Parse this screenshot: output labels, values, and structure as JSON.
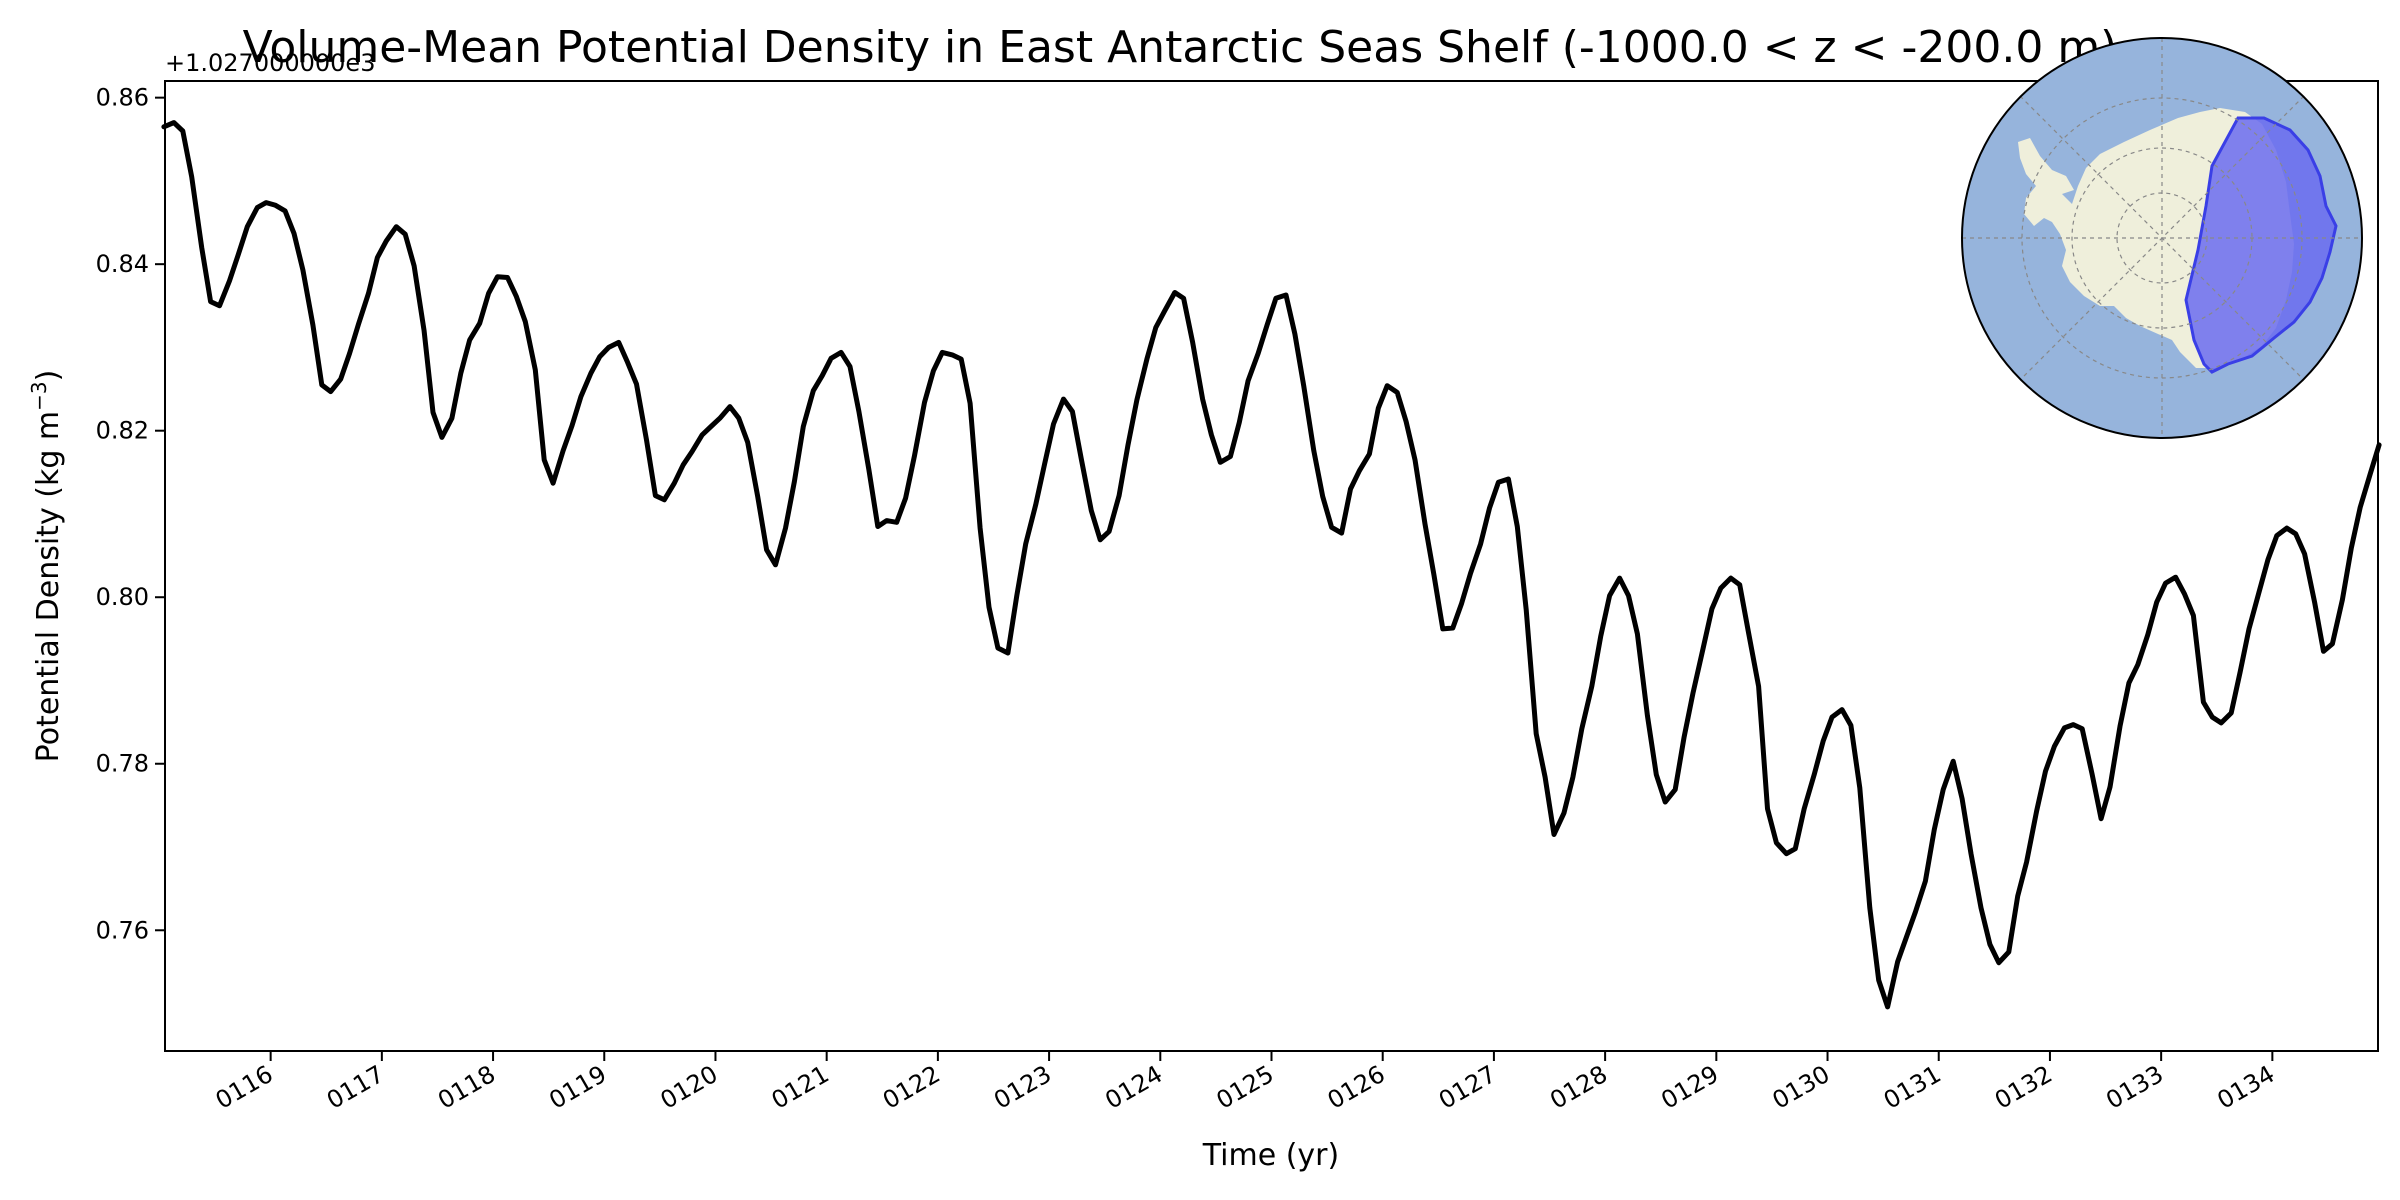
{
  "chart_data": {
    "type": "line",
    "title": "Volume-Mean Potential Density in East Antarctic Seas Shelf (-1000.0 < z < -200.0 m)",
    "xlabel": "Time (yr)",
    "ylabel_main": "Potential Density (kg m",
    "ylabel_sup": "−3",
    "ylabel_close": ")",
    "offset_text": "+1.027000000e3",
    "xlim": [
      115.05,
      134.95
    ],
    "ylim": [
      0.7455,
      0.862
    ],
    "x_ticks": [
      116,
      117,
      118,
      119,
      120,
      121,
      122,
      123,
      124,
      125,
      126,
      127,
      128,
      129,
      130,
      131,
      132,
      133,
      134
    ],
    "x_tick_labels": [
      "0116",
      "0117",
      "0118",
      "0119",
      "0120",
      "0121",
      "0122",
      "0123",
      "0124",
      "0125",
      "0126",
      "0127",
      "0128",
      "0129",
      "0130",
      "0131",
      "0132",
      "0133",
      "0134"
    ],
    "y_ticks": [
      0.76,
      0.78,
      0.8,
      0.82,
      0.84,
      0.86
    ],
    "y_tick_labels": [
      "0.76",
      "0.78",
      "0.80",
      "0.82",
      "0.84",
      "0.86"
    ],
    "series": [
      {
        "name": "East Antarctic Seas Shelf",
        "color": "#000000",
        "x": [
          115.04,
          115.13,
          115.21,
          115.29,
          115.38,
          115.46,
          115.54,
          115.63,
          115.71,
          115.79,
          115.88,
          115.96,
          116.04,
          116.13,
          116.21,
          116.29,
          116.38,
          116.46,
          116.54,
          116.63,
          116.71,
          116.79,
          116.88,
          116.96,
          117.04,
          117.13,
          117.21,
          117.29,
          117.38,
          117.46,
          117.54,
          117.63,
          117.71,
          117.79,
          117.88,
          117.96,
          118.04,
          118.13,
          118.21,
          118.29,
          118.38,
          118.46,
          118.54,
          118.63,
          118.71,
          118.79,
          118.88,
          118.96,
          119.04,
          119.13,
          119.21,
          119.29,
          119.38,
          119.46,
          119.54,
          119.63,
          119.71,
          119.79,
          119.88,
          119.96,
          120.04,
          120.13,
          120.21,
          120.29,
          120.38,
          120.46,
          120.54,
          120.63,
          120.71,
          120.79,
          120.88,
          120.96,
          121.04,
          121.13,
          121.21,
          121.29,
          121.38,
          121.46,
          121.54,
          121.63,
          121.71,
          121.79,
          121.88,
          121.96,
          122.04,
          122.13,
          122.21,
          122.29,
          122.38,
          122.46,
          122.54,
          122.63,
          122.71,
          122.79,
          122.88,
          122.96,
          123.04,
          123.13,
          123.21,
          123.29,
          123.38,
          123.46,
          123.54,
          123.63,
          123.71,
          123.79,
          123.88,
          123.96,
          124.04,
          124.13,
          124.21,
          124.29,
          124.38,
          124.46,
          124.54,
          124.63,
          124.71,
          124.79,
          124.88,
          124.96,
          125.04,
          125.13,
          125.21,
          125.29,
          125.38,
          125.46,
          125.54,
          125.63,
          125.71,
          125.79,
          125.88,
          125.96,
          126.04,
          126.13,
          126.21,
          126.29,
          126.38,
          126.46,
          126.54,
          126.63,
          126.71,
          126.79,
          126.88,
          126.96,
          127.04,
          127.13,
          127.21,
          127.29,
          127.38,
          127.46,
          127.54,
          127.63,
          127.71,
          127.79,
          127.88,
          127.96,
          128.04,
          128.13,
          128.21,
          128.29,
          128.38,
          128.46,
          128.54,
          128.63,
          128.71,
          128.79,
          128.88,
          128.96,
          129.04,
          129.13,
          129.21,
          129.29,
          129.38,
          129.46,
          129.54,
          129.63,
          129.71,
          129.79,
          129.88,
          129.96,
          130.04,
          130.13,
          130.21,
          130.29,
          130.38,
          130.46,
          130.54,
          130.63,
          130.71,
          130.79,
          130.88,
          130.96,
          131.04,
          131.13,
          131.21,
          131.29,
          131.38,
          131.46,
          131.54,
          131.63,
          131.71,
          131.79,
          131.88,
          131.96,
          132.04,
          132.13,
          132.21,
          132.29,
          132.38,
          132.46,
          132.54,
          132.63,
          132.71,
          132.79,
          132.88,
          132.96,
          133.04,
          133.13,
          133.21,
          133.29,
          133.38,
          133.46,
          133.54,
          133.63,
          133.71,
          133.79,
          133.88,
          133.96,
          134.04,
          134.13,
          134.21,
          134.29,
          134.38,
          134.46,
          134.54,
          134.63,
          134.71,
          134.79,
          134.88,
          134.96
        ],
        "y": [
          0.8565,
          0.857,
          0.856,
          0.8505,
          0.842,
          0.8355,
          0.835,
          0.838,
          0.8412,
          0.8445,
          0.8468,
          0.8474,
          0.8471,
          0.8464,
          0.8437,
          0.8393,
          0.8327,
          0.8255,
          0.8247,
          0.8262,
          0.8293,
          0.8328,
          0.8365,
          0.8408,
          0.8428,
          0.8445,
          0.8436,
          0.8398,
          0.832,
          0.8222,
          0.8192,
          0.8215,
          0.8269,
          0.8309,
          0.8329,
          0.8365,
          0.8385,
          0.8384,
          0.8361,
          0.8331,
          0.8273,
          0.8165,
          0.8137,
          0.8176,
          0.8206,
          0.8241,
          0.8269,
          0.8289,
          0.83,
          0.8306,
          0.8282,
          0.8256,
          0.8189,
          0.8122,
          0.8117,
          0.8137,
          0.8159,
          0.8175,
          0.8195,
          0.8205,
          0.8215,
          0.8229,
          0.8215,
          0.8186,
          0.8121,
          0.8057,
          0.8039,
          0.8083,
          0.8139,
          0.8205,
          0.8248,
          0.8266,
          0.8287,
          0.8294,
          0.8277,
          0.8223,
          0.8153,
          0.8085,
          0.8092,
          0.809,
          0.8119,
          0.817,
          0.8234,
          0.8272,
          0.8294,
          0.8291,
          0.8286,
          0.8233,
          0.8083,
          0.7988,
          0.7939,
          0.7933,
          0.8002,
          0.8064,
          0.8111,
          0.816,
          0.8208,
          0.8238,
          0.8223,
          0.8166,
          0.8104,
          0.8069,
          0.8079,
          0.8122,
          0.8183,
          0.8237,
          0.8286,
          0.8324,
          0.8344,
          0.8366,
          0.8359,
          0.8307,
          0.8238,
          0.8195,
          0.8162,
          0.8169,
          0.821,
          0.826,
          0.8293,
          0.8327,
          0.8359,
          0.8363,
          0.8316,
          0.8254,
          0.8176,
          0.8121,
          0.8084,
          0.8077,
          0.813,
          0.8152,
          0.8172,
          0.8227,
          0.8254,
          0.8246,
          0.8211,
          0.8165,
          0.8088,
          0.8027,
          0.7962,
          0.7963,
          0.7993,
          0.8029,
          0.8064,
          0.8107,
          0.8138,
          0.8142,
          0.8085,
          0.7985,
          0.7836,
          0.7784,
          0.7715,
          0.7741,
          0.7784,
          0.7842,
          0.7893,
          0.7953,
          0.8002,
          0.8023,
          0.8002,
          0.7956,
          0.7858,
          0.7787,
          0.7754,
          0.7769,
          0.7832,
          0.7885,
          0.7938,
          0.7986,
          0.8011,
          0.8023,
          0.8015,
          0.7957,
          0.7893,
          0.7746,
          0.7705,
          0.7692,
          0.7698,
          0.7746,
          0.7787,
          0.7827,
          0.7856,
          0.7865,
          0.7846,
          0.7771,
          0.7627,
          0.754,
          0.7508,
          0.7562,
          0.7592,
          0.7622,
          0.7659,
          0.7721,
          0.7769,
          0.7803,
          0.7758,
          0.7692,
          0.7627,
          0.7583,
          0.7561,
          0.7574,
          0.7641,
          0.7682,
          0.7743,
          0.7791,
          0.7821,
          0.7843,
          0.7847,
          0.7842,
          0.7787,
          0.7734,
          0.7772,
          0.7845,
          0.7897,
          0.7919,
          0.7955,
          0.7994,
          0.8017,
          0.8024,
          0.8004,
          0.7978,
          0.7874,
          0.7856,
          0.7849,
          0.7861,
          0.791,
          0.7962,
          0.8006,
          0.8045,
          0.8074,
          0.8083,
          0.8076,
          0.8052,
          0.7994,
          0.7935,
          0.7944,
          0.7997,
          0.8059,
          0.8108,
          0.8148,
          0.8183
        ]
      }
    ]
  },
  "inset_map": {
    "ocean_color": "#96b4dc",
    "land_color": "#efefdb",
    "region_color": "#6b6cf0",
    "region_edge_color": "#3a3fe6",
    "label": "East Antarctic Seas Shelf"
  }
}
